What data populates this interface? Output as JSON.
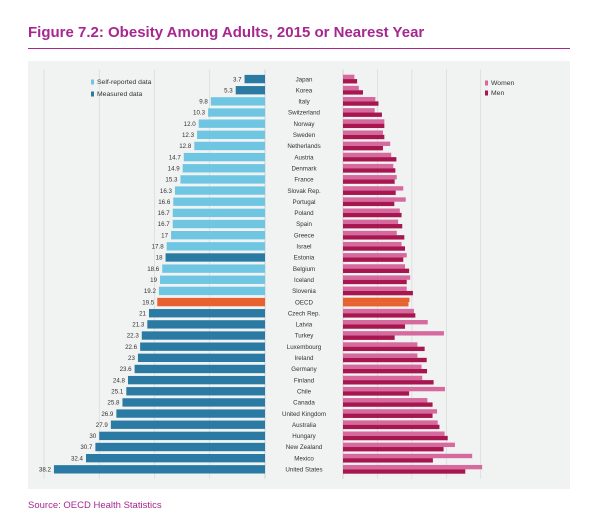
{
  "figure_title": "Figure 7.2: Obesity Among Adults, 2015 or Nearest Year",
  "source": "Source: OECD Health Statistics",
  "colors": {
    "accent": "#a6278f",
    "self_reported": "#6fc6e3",
    "measured": "#2a7aa3",
    "oecd": "#e8622f",
    "women": "#d66a9e",
    "men": "#a8164f",
    "panel": "#f1f2f2"
  },
  "chart_data": [
    {
      "type": "bar",
      "orientation": "horizontal",
      "direction": "right-to-left",
      "categories": [
        "Japan",
        "Korea",
        "Italy",
        "Switzerland",
        "Norway",
        "Sweden",
        "Netherlands",
        "Austria",
        "Denmark",
        "France",
        "Slovak Rep.",
        "Portugal",
        "Poland",
        "Spain",
        "Greece",
        "Israel",
        "Estonia",
        "Belgium",
        "Iceland",
        "Slovenia",
        "OECD",
        "Czech Rep.",
        "Latvia",
        "Turkey",
        "Luxembourg",
        "Ireland",
        "Germany",
        "Finland",
        "Chile",
        "Canada",
        "United Kingdom",
        "Australia",
        "Hungary",
        "New Zealand",
        "Mexico",
        "United States"
      ],
      "values": [
        3.7,
        5.3,
        9.8,
        10.3,
        12.0,
        12.3,
        12.8,
        14.7,
        14.9,
        15.3,
        16.3,
        16.6,
        16.7,
        16.7,
        17,
        17.8,
        18,
        18.6,
        19,
        19.2,
        19.5,
        21,
        21.3,
        22.3,
        22.6,
        23,
        23.6,
        24.8,
        25.1,
        25.8,
        26.9,
        27.9,
        30,
        30.7,
        32.4,
        38.2
      ],
      "value_labels": [
        "3.7",
        "5.3",
        "9.8",
        "10.3",
        "12.0",
        "12.3",
        "12.8",
        "14.7",
        "14.9",
        "15.3",
        "16.3",
        "16.6",
        "16.7",
        "16.7",
        "17",
        "17.8",
        "18",
        "18.6",
        "19",
        "19.2",
        "19.5",
        "21",
        "21.3",
        "22.3",
        "22.6",
        "23",
        "23.6",
        "24.8",
        "25.1",
        "25.8",
        "26.9",
        "27.9",
        "30",
        "30.7",
        "32.4",
        "38.2"
      ],
      "measure_type": [
        "measured",
        "measured",
        "self",
        "self",
        "self",
        "self",
        "self",
        "self",
        "self",
        "self",
        "self",
        "self",
        "self",
        "self",
        "self",
        "self",
        "measured",
        "self",
        "self",
        "self",
        "oecd",
        "measured",
        "measured",
        "measured",
        "measured",
        "measured",
        "measured",
        "measured",
        "measured",
        "measured",
        "measured",
        "measured",
        "measured",
        "measured",
        "measured",
        "measured"
      ],
      "legend": [
        {
          "label": "Self-reported data",
          "key": "self"
        },
        {
          "label": "Measured data",
          "key": "measured"
        }
      ],
      "legend_position": "top-left",
      "xlim": [
        0,
        40
      ],
      "grid": true
    },
    {
      "type": "bar",
      "orientation": "horizontal",
      "categories": [
        "Japan",
        "Korea",
        "Italy",
        "Switzerland",
        "Norway",
        "Sweden",
        "Netherlands",
        "Austria",
        "Denmark",
        "France",
        "Slovak Rep.",
        "Portugal",
        "Poland",
        "Spain",
        "Greece",
        "Israel",
        "Estonia",
        "Belgium",
        "Iceland",
        "Slovenia",
        "OECD",
        "Czech Rep.",
        "Latvia",
        "Turkey",
        "Luxembourg",
        "Ireland",
        "Germany",
        "Finland",
        "Chile",
        "Canada",
        "United Kingdom",
        "Australia",
        "Hungary",
        "New Zealand",
        "Mexico",
        "United States"
      ],
      "series": [
        {
          "name": "Women",
          "values": [
            3.3,
            4.6,
            9.4,
            9.2,
            12.0,
            11.6,
            13.7,
            14.0,
            14.6,
            15.6,
            17.5,
            18.2,
            16.5,
            16.0,
            15.6,
            17.0,
            18.5,
            18.0,
            19.5,
            18.5,
            19.3,
            20.6,
            24.6,
            29.3,
            21.6,
            21.6,
            22.8,
            23.0,
            29.6,
            24.5,
            27.3,
            27.5,
            29.5,
            32.5,
            37.5,
            40.4
          ]
        },
        {
          "name": "Men",
          "values": [
            4.1,
            5.8,
            10.3,
            11.3,
            12.0,
            12.0,
            11.6,
            15.5,
            15.2,
            15.0,
            15.3,
            14.9,
            17.0,
            17.2,
            17.8,
            18.0,
            17.5,
            19.2,
            18.5,
            20.3,
            19.0,
            21.0,
            18.0,
            15.0,
            23.7,
            24.3,
            24.4,
            26.3,
            19.2,
            26.0,
            26.0,
            28.0,
            30.4,
            29.2,
            26.1,
            35.5
          ]
        }
      ],
      "legend_position": "top-right",
      "xlim": [
        0,
        45
      ],
      "grid": true
    }
  ]
}
